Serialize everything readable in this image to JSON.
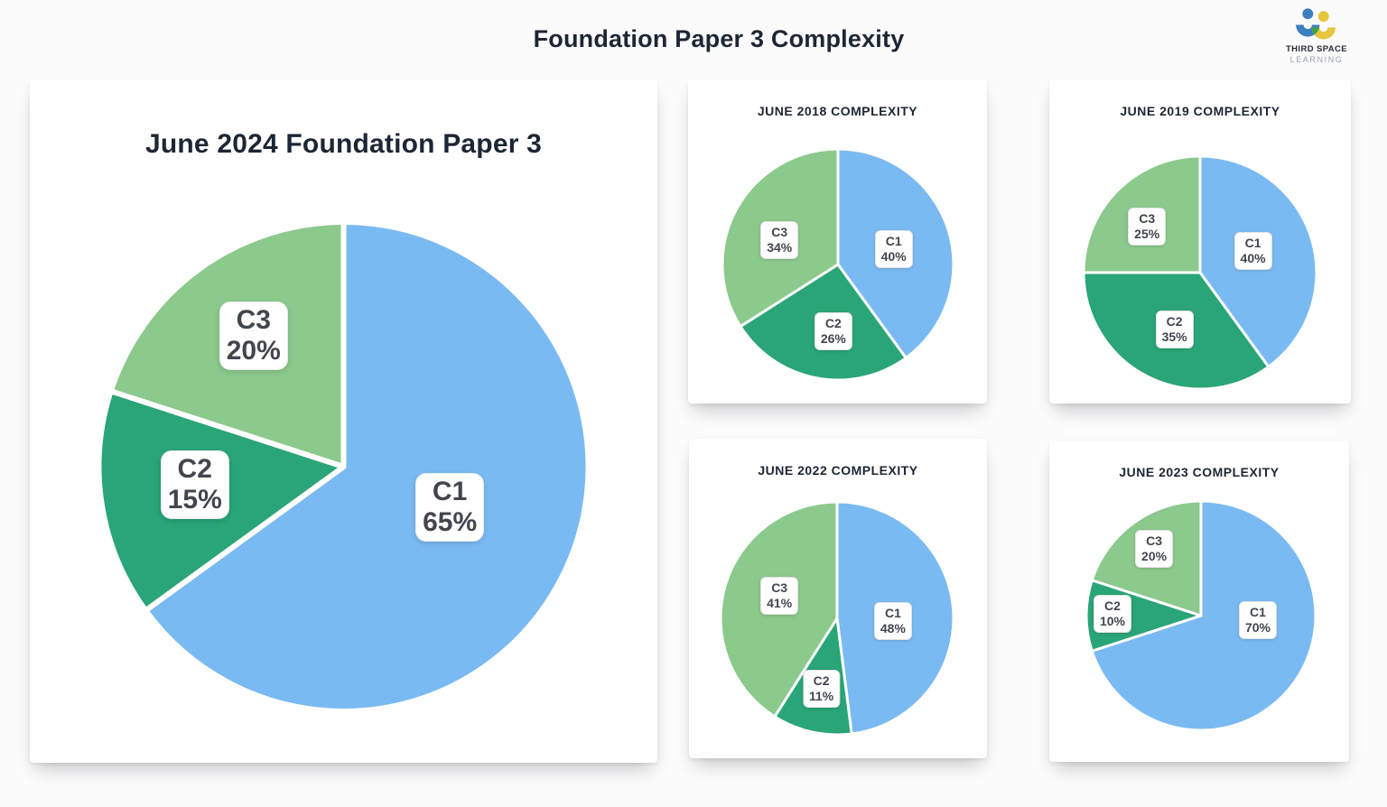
{
  "page_title": "Foundation Paper 3 Complexity",
  "logo": {
    "brand": "Third Space Learning",
    "line1": "THIRD SPACE",
    "line2": "LEARNING",
    "icon_blue": "#3D7EBE",
    "icon_yellow": "#E5C63F",
    "icon_green": "#43A047"
  },
  "slice_colors": {
    "C1": "#7ABAF2",
    "C2": "#2AA577",
    "C3": "#8CC98C"
  },
  "chart_data": [
    {
      "id": "june-2024-foundation-paper-3",
      "type": "pie",
      "title": "June 2024 Foundation Paper 3",
      "unit": "%",
      "categories": [
        "C1",
        "C2",
        "C3"
      ],
      "values": [
        65,
        15,
        20
      ],
      "colors": [
        "#7ABAF2",
        "#2AA577",
        "#8CC98C"
      ],
      "start_angle_deg": 0,
      "direction": "clockwise",
      "legend": "none",
      "label_offsets": [
        [
          0.434,
          0.166
        ],
        [
          -0.608,
          0.074
        ],
        [
          -0.368,
          -0.534
        ]
      ]
    },
    {
      "id": "june-2018-complexity",
      "type": "pie",
      "title": "JUNE 2018 COMPLEXITY",
      "unit": "%",
      "categories": [
        "C1",
        "C2",
        "C3"
      ],
      "values": [
        40,
        26,
        34
      ],
      "colors": [
        "#7ABAF2",
        "#2AA577",
        "#8CC98C"
      ],
      "start_angle_deg": 0,
      "direction": "clockwise",
      "legend": "none",
      "label_offsets": [
        [
          0.482,
          -0.134
        ],
        [
          -0.04,
          0.577
        ],
        [
          -0.506,
          -0.213
        ]
      ]
    },
    {
      "id": "june-2019-complexity",
      "type": "pie",
      "title": "JUNE 2019 COMPLEXITY",
      "unit": "%",
      "categories": [
        "C1",
        "C2",
        "C3"
      ],
      "values": [
        40,
        35,
        25
      ],
      "colors": [
        "#7ABAF2",
        "#2AA577",
        "#8CC98C"
      ],
      "start_angle_deg": 0,
      "direction": "clockwise",
      "legend": "none",
      "label_offsets": [
        [
          0.454,
          -0.187
        ],
        [
          -0.22,
          0.488
        ],
        [
          -0.456,
          -0.397
        ]
      ]
    },
    {
      "id": "june-2022-complexity",
      "type": "pie",
      "title": "JUNE 2022 COMPLEXITY",
      "unit": "%",
      "categories": [
        "C1",
        "C2",
        "C3"
      ],
      "values": [
        48,
        11,
        41
      ],
      "colors": [
        "#7ABAF2",
        "#2AA577",
        "#8CC98C"
      ],
      "start_angle_deg": 0,
      "direction": "clockwise",
      "legend": "none",
      "label_offsets": [
        [
          0.48,
          0.025
        ],
        [
          -0.135,
          0.602
        ],
        [
          -0.495,
          -0.192
        ]
      ]
    },
    {
      "id": "june-2023-complexity",
      "type": "pie",
      "title": "JUNE 2023 COMPLEXITY",
      "unit": "%",
      "categories": [
        "C1",
        "C2",
        "C3"
      ],
      "values": [
        70,
        10,
        20
      ],
      "colors": [
        "#7ABAF2",
        "#2AA577",
        "#8CC98C"
      ],
      "start_angle_deg": 0,
      "direction": "clockwise",
      "legend": "none",
      "label_offsets": [
        [
          0.496,
          0.039
        ],
        [
          -0.772,
          -0.016
        ],
        [
          -0.409,
          -0.582
        ]
      ]
    }
  ]
}
